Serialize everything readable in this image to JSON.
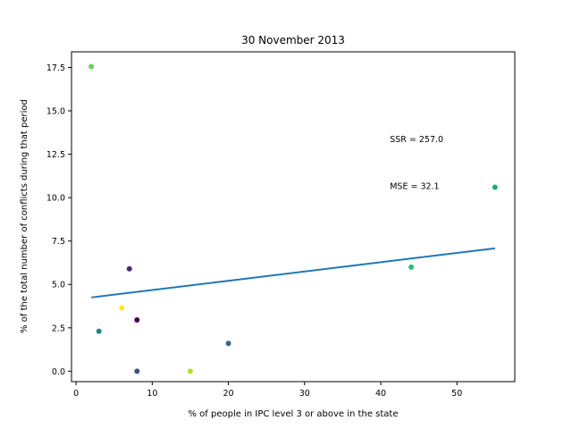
{
  "chart_data": {
    "type": "scatter",
    "title": "30 November 2013",
    "xlabel": "% of people in IPC level 3 or above in the state",
    "ylabel": "% of the total number of conflicts during that period",
    "xlim": [
      -0.6,
      57.6
    ],
    "ylim": [
      -0.6,
      18.4
    ],
    "x_ticks": [
      0,
      10,
      20,
      30,
      40,
      50
    ],
    "x_tick_labels": [
      "0",
      "10",
      "20",
      "30",
      "40",
      "50"
    ],
    "y_ticks": [
      0.0,
      2.5,
      5.0,
      7.5,
      10.0,
      12.5,
      15.0,
      17.5
    ],
    "y_tick_labels": [
      "0.0",
      "2.5",
      "5.0",
      "7.5",
      "10.0",
      "12.5",
      "15.0",
      "17.5"
    ],
    "grid": false,
    "points": [
      {
        "x": 2,
        "y": 17.55,
        "color": "#6ccd5a"
      },
      {
        "x": 3,
        "y": 2.3,
        "color": "#25858e"
      },
      {
        "x": 6,
        "y": 3.65,
        "color": "#fde725"
      },
      {
        "x": 7,
        "y": 5.9,
        "color": "#482878"
      },
      {
        "x": 8,
        "y": 2.95,
        "color": "#440154"
      },
      {
        "x": 8,
        "y": 0.0,
        "color": "#3b528b"
      },
      {
        "x": 15,
        "y": 0.0,
        "color": "#b5de2b"
      },
      {
        "x": 20,
        "y": 1.6,
        "color": "#31688e"
      },
      {
        "x": 44,
        "y": 6.0,
        "color": "#35b779"
      },
      {
        "x": 55,
        "y": 10.6,
        "color": "#21a685"
      }
    ],
    "fit_line": {
      "x": [
        2,
        55
      ],
      "y": [
        4.25,
        7.08
      ],
      "color": "#1f77b4"
    },
    "annotations": [
      {
        "text": "SSR = 257.0",
        "x": 41.2,
        "y": 13.2
      },
      {
        "text": "MSE = 32.1",
        "x": 41.2,
        "y": 10.5
      }
    ]
  }
}
